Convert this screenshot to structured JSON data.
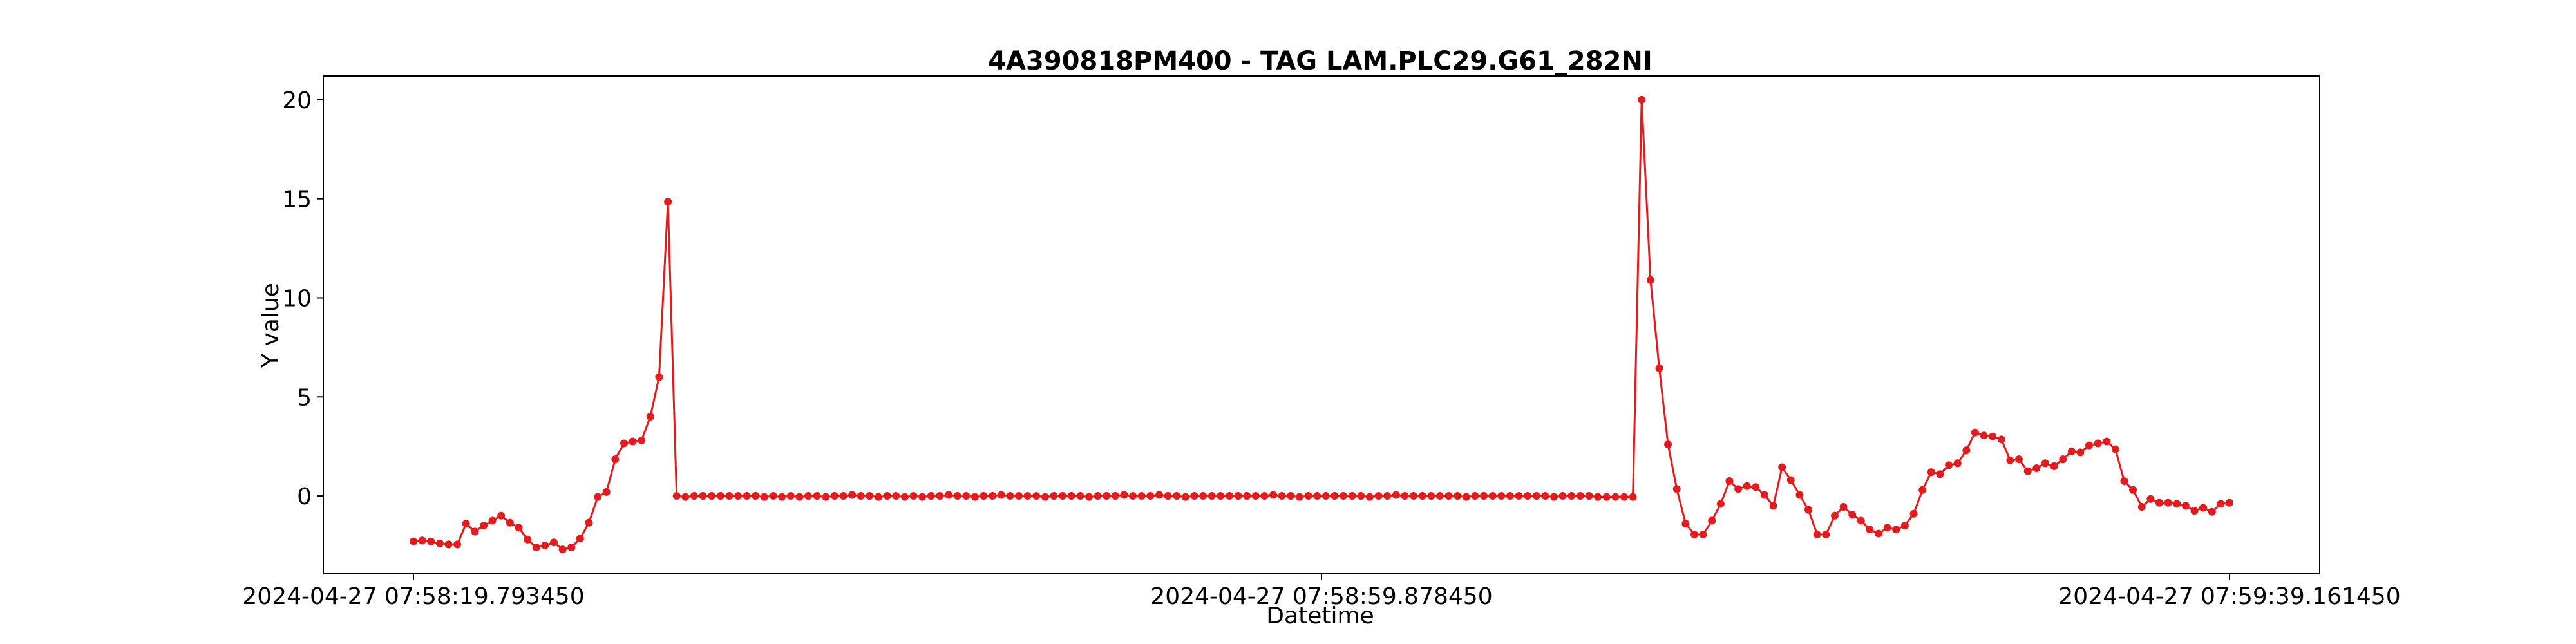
{
  "chart_data": {
    "type": "line",
    "title": "4A390818PM400 - TAG LAM.PLC29.G61_282NI",
    "xlabel": "Datetime",
    "ylabel": "Y value",
    "x_start": "2024-04-27 07:58:19.793450",
    "x_end": "2024-04-27 07:59:39.161450",
    "x_tick_labels": [
      "2024-04-27 07:58:19.793450",
      "2024-04-27 07:58:59.878450",
      "2024-04-27 07:59:39.161450"
    ],
    "y_ticks": [
      0,
      5,
      10,
      15,
      20
    ],
    "ylim": [
      -3.9,
      21.2
    ],
    "grid": false,
    "legend": "none",
    "line_color": "#e41a1c",
    "marker_color": "#e41a1c",
    "values": [
      -2.3,
      -2.25,
      -2.3,
      -2.4,
      -2.45,
      -2.45,
      -1.4,
      -1.8,
      -1.5,
      -1.25,
      -1.0,
      -1.35,
      -1.6,
      -2.2,
      -2.6,
      -2.5,
      -2.35,
      -2.7,
      -2.6,
      -2.15,
      -1.35,
      -0.05,
      0.2,
      1.85,
      2.65,
      2.75,
      2.8,
      4.0,
      6.0,
      14.85,
      0.0,
      -0.05,
      0.0,
      0.0,
      0.0,
      0.0,
      0.0,
      0.0,
      0.0,
      0.0,
      -0.05,
      0.0,
      -0.05,
      0.0,
      -0.05,
      0.0,
      0.0,
      -0.05,
      0.0,
      0.0,
      0.05,
      0.0,
      0.0,
      -0.05,
      0.0,
      0.0,
      -0.05,
      0.0,
      -0.05,
      0.0,
      0.0,
      0.05,
      0.0,
      0.0,
      -0.05,
      0.0,
      0.0,
      0.05,
      0.0,
      0.0,
      0.0,
      0.0,
      -0.05,
      0.0,
      0.0,
      0.0,
      0.0,
      -0.05,
      0.0,
      0.0,
      0.0,
      0.05,
      0.0,
      0.0,
      0.0,
      0.05,
      0.0,
      0.0,
      -0.05,
      0.0,
      0.0,
      0.0,
      0.0,
      0.0,
      0.0,
      0.0,
      0.0,
      0.0,
      0.05,
      0.0,
      0.0,
      -0.05,
      0.0,
      0.0,
      0.0,
      0.0,
      0.0,
      0.0,
      0.0,
      -0.05,
      0.0,
      0.0,
      0.05,
      0.0,
      0.0,
      0.0,
      0.0,
      0.0,
      0.0,
      0.0,
      -0.05,
      0.0,
      0.0,
      0.0,
      0.0,
      0.0,
      0.0,
      0.0,
      0.0,
      0.0,
      -0.05,
      0.0,
      0.0,
      0.0,
      0.0,
      -0.05,
      -0.05,
      -0.05,
      -0.05,
      -0.05,
      20.0,
      10.9,
      6.45,
      2.6,
      0.35,
      -1.4,
      -1.95,
      -1.95,
      -1.25,
      -0.4,
      0.75,
      0.35,
      0.5,
      0.45,
      0.05,
      -0.5,
      1.45,
      0.8,
      0.05,
      -0.7,
      -1.95,
      -1.95,
      -1.0,
      -0.55,
      -0.95,
      -1.25,
      -1.7,
      -1.9,
      -1.6,
      -1.7,
      -1.5,
      -0.9,
      0.3,
      1.2,
      1.1,
      1.55,
      1.65,
      2.3,
      3.2,
      3.05,
      3.0,
      2.85,
      1.8,
      1.85,
      1.25,
      1.4,
      1.65,
      1.5,
      1.85,
      2.25,
      2.2,
      2.55,
      2.65,
      2.75,
      2.35,
      0.75,
      0.3,
      -0.55,
      -0.15,
      -0.35,
      -0.35,
      -0.4,
      -0.5,
      -0.75,
      -0.6,
      -0.8,
      -0.4,
      -0.35
    ]
  }
}
